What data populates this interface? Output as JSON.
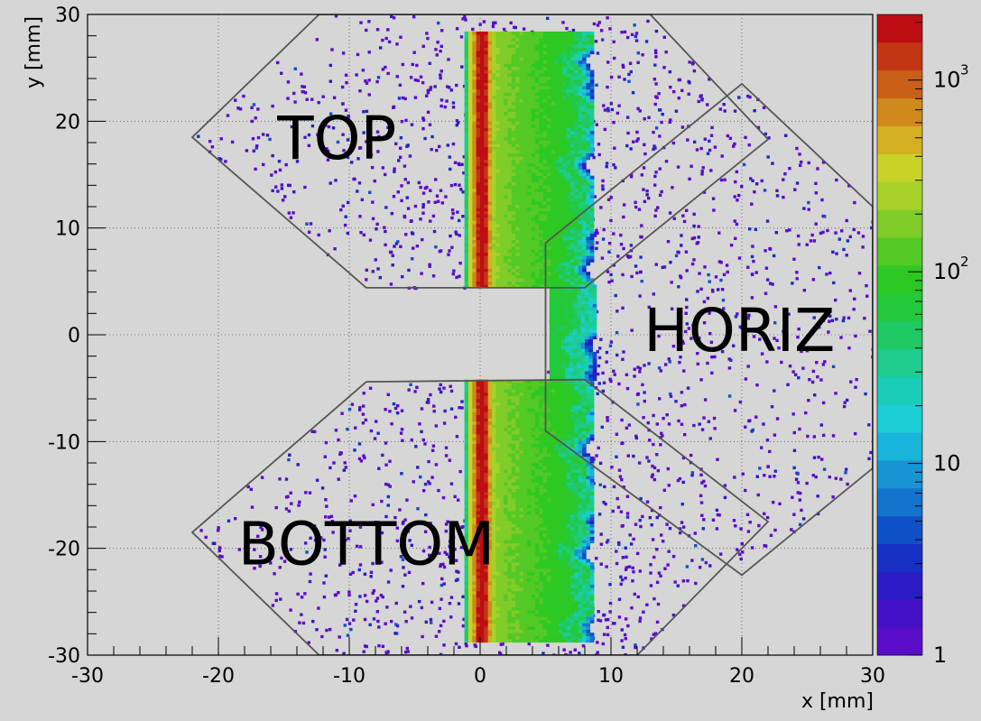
{
  "chart_data": {
    "type": "heatmap",
    "xlabel": "x [mm]",
    "ylabel": "y [mm]",
    "xlim": [
      -30,
      30
    ],
    "ylim": [
      -30,
      30
    ],
    "x_ticks": [
      "-30",
      "-20",
      "-10",
      "0",
      "10",
      "20",
      "30"
    ],
    "y_ticks": [
      "30",
      "20",
      "10",
      "0",
      "-10",
      "-20",
      "-30"
    ],
    "grid": true,
    "colorbar": {
      "scale": "log",
      "range": [
        1,
        2200
      ],
      "labels": [
        "1",
        "10",
        "10",
        "10"
      ],
      "label_exponents": [
        "",
        "",
        "2",
        "3"
      ],
      "bin_colors": [
        "#5a0cc8",
        "#4411c6",
        "#2a1bc4",
        "#1530c2",
        "#1050c7",
        "#1473cc",
        "#1795d3",
        "#19b4d9",
        "#1acdd6",
        "#1acdb6",
        "#1dcc8e",
        "#1fc964",
        "#22c93a",
        "#2dc922",
        "#53c925",
        "#80cc28",
        "#a6d22a",
        "#c9d327",
        "#d4b021",
        "#d0891d",
        "#c9601a",
        "#c23616",
        "#bd0e12"
      ]
    },
    "regions": [
      {
        "label": "TOP",
        "outline": [
          [
            -8.7,
            4.4
          ],
          [
            -22,
            18.5
          ],
          [
            -12.3,
            30
          ],
          [
            13,
            30
          ],
          [
            22,
            18.3
          ],
          [
            8,
            4.4
          ]
        ]
      },
      {
        "label": "HORIZ",
        "outline": [
          [
            5,
            8.6
          ],
          [
            20,
            23.5
          ],
          [
            30,
            12
          ],
          [
            30,
            -12.5
          ],
          [
            20,
            -22.5
          ],
          [
            5,
            -9
          ]
        ]
      },
      {
        "label": "BOTTOM",
        "outline": [
          [
            -8.7,
            -4.4
          ],
          [
            -22,
            -18.5
          ],
          [
            -12.3,
            -30
          ],
          [
            12,
            -30
          ],
          [
            22,
            -17.5
          ],
          [
            8,
            -4.2
          ]
        ]
      }
    ],
    "beam_strips": [
      {
        "x_range": [
          -1.2,
          8.5
        ],
        "y_range": [
          4.4,
          28.2
        ],
        "peak_x": 0
      },
      {
        "x_range": [
          -1.2,
          8.5
        ],
        "y_range": [
          -28.8,
          -4.3
        ],
        "peak_x": 0
      },
      {
        "x_range": [
          5.3,
          8.8
        ],
        "y_range": [
          -4.3,
          4.4
        ],
        "peak_x": null
      }
    ]
  }
}
